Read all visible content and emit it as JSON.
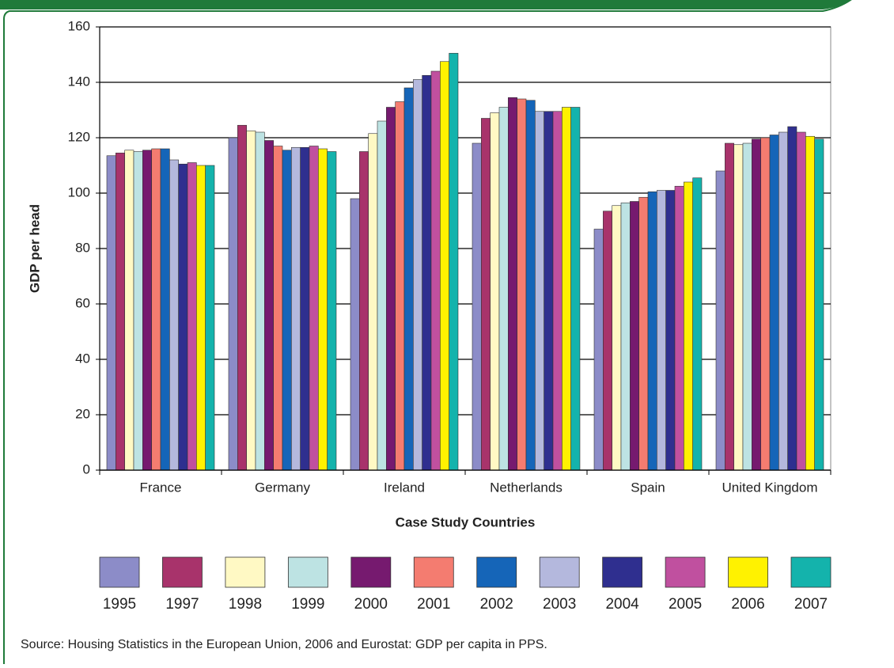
{
  "chart_data": {
    "type": "bar",
    "x_label": "Case Study Countries",
    "y_label": "GDP per head",
    "source": "Source: Housing Statistics in the European Union, 2006 and Eurostat: GDP per capita in PPS.",
    "categories": [
      "France",
      "Germany",
      "Ireland",
      "Netherlands",
      "Spain",
      "United Kingdom"
    ],
    "series": [
      {
        "name": "1995",
        "color": "#8c8cc8",
        "values": [
          113.5,
          120,
          98,
          118,
          87,
          108
        ]
      },
      {
        "name": "1997",
        "color": "#a8336b",
        "values": [
          114.5,
          124.5,
          115,
          127,
          93.5,
          118
        ]
      },
      {
        "name": "1998",
        "color": "#fff9c4",
        "values": [
          115.5,
          122.5,
          121.5,
          129,
          95.5,
          117.5
        ]
      },
      {
        "name": "1999",
        "color": "#bde3e3",
        "values": [
          115,
          122,
          126,
          131,
          96.5,
          118
        ]
      },
      {
        "name": "2000",
        "color": "#761a6f",
        "values": [
          115.5,
          119,
          131,
          134.5,
          97,
          119.5
        ]
      },
      {
        "name": "2001",
        "color": "#f47c70",
        "values": [
          116,
          117,
          133,
          134,
          98.5,
          120
        ]
      },
      {
        "name": "2002",
        "color": "#1565b8",
        "values": [
          116,
          115.5,
          138,
          133.5,
          100.5,
          121
        ]
      },
      {
        "name": "2003",
        "color": "#b4b8dd",
        "values": [
          112,
          116.5,
          141,
          129.5,
          101,
          122
        ]
      },
      {
        "name": "2004",
        "color": "#2f2f8f",
        "values": [
          110.5,
          116.5,
          142.5,
          129.5,
          101,
          124
        ]
      },
      {
        "name": "2005",
        "color": "#c0509f",
        "values": [
          111,
          117,
          144,
          129.5,
          102.5,
          122
        ]
      },
      {
        "name": "2006",
        "color": "#fff200",
        "values": [
          110,
          116,
          147.5,
          131,
          104,
          120.5
        ]
      },
      {
        "name": "2007",
        "color": "#14b3ac",
        "values": [
          110,
          115,
          150.5,
          131,
          105.5,
          119.5
        ]
      }
    ],
    "ylim": [
      0,
      160
    ],
    "yticks": [
      0,
      20,
      40,
      60,
      80,
      100,
      120,
      140,
      160
    ],
    "grid": true,
    "legend": "bottom"
  }
}
